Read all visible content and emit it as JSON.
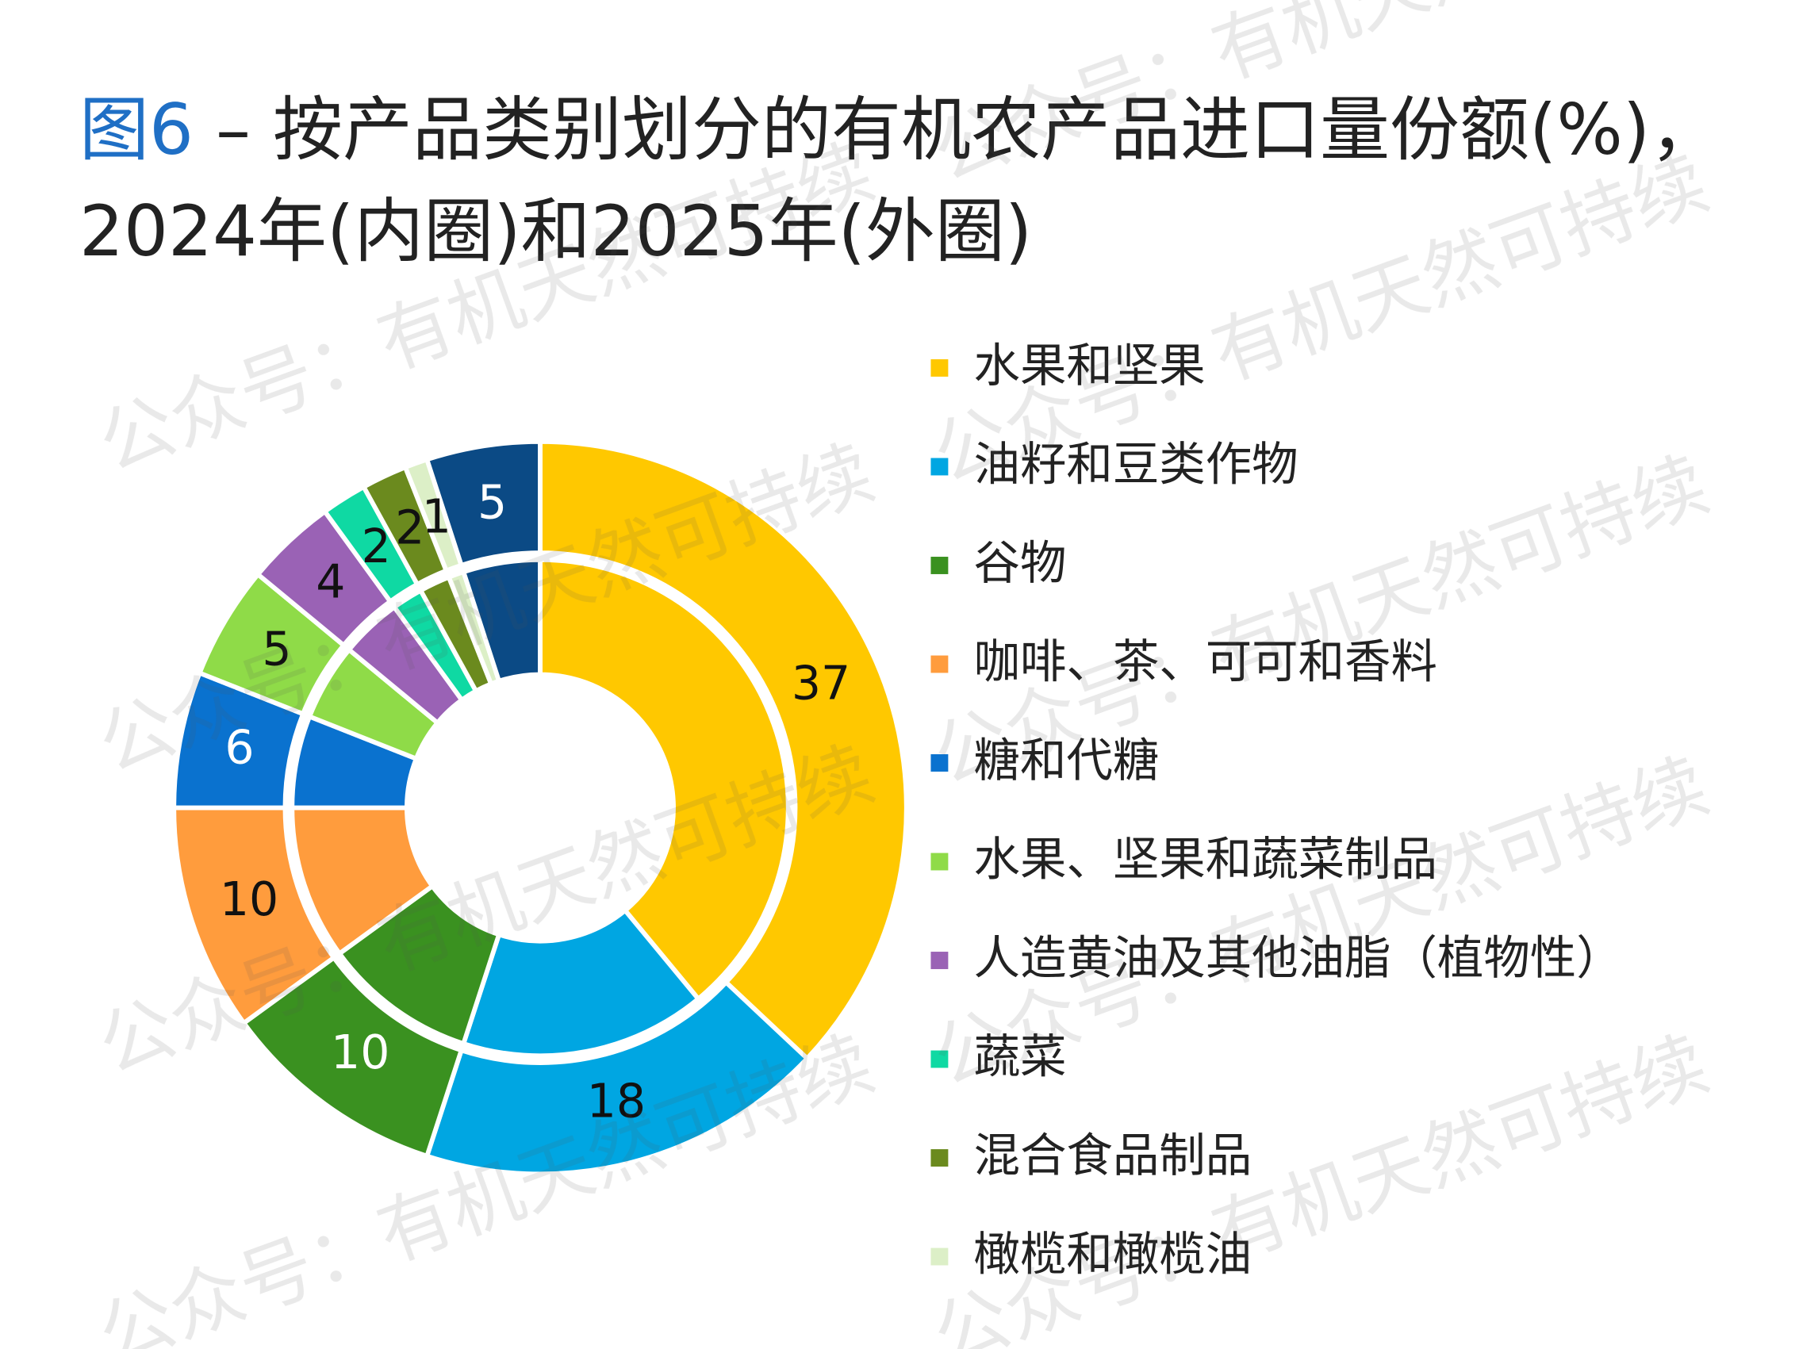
{
  "chart_data": {
    "type": "nested-donut",
    "title_prefix": "图6",
    "title": " – 按产品类别划分的有机农产品进口量份额(%)，2024年(内圈)和2025年(外圈)",
    "categories": [
      "水果和坚果",
      "油籽和豆类作物",
      "谷物",
      "咖啡、茶、可可和香料",
      "糖和代糖",
      "水果、坚果和蔬菜制品",
      "人造黄油及其他油脂（植物性）",
      "蔬菜",
      "混合食品制品",
      "橄榄和橄榄油",
      null
    ],
    "colors": [
      "#ffc800",
      "#00a6e2",
      "#3a9120",
      "#ff9c3d",
      "#0a72cf",
      "#8fdb48",
      "#9a62b5",
      "#0fd9a3",
      "#6b8a1e",
      "#dcefc7",
      "#0b4a85"
    ],
    "series": [
      {
        "values": [
          39,
          16,
          10,
          10,
          6,
          5,
          4,
          2,
          2,
          1,
          5
        ],
        "labels": false
      },
      {
        "values": [
          37,
          18,
          10,
          10,
          6,
          5,
          4,
          2,
          2,
          1,
          5
        ],
        "labels": true
      }
    ],
    "start_angle": 0,
    "direction": "clockwise",
    "watermark": "公众号：有机天然可持续"
  }
}
